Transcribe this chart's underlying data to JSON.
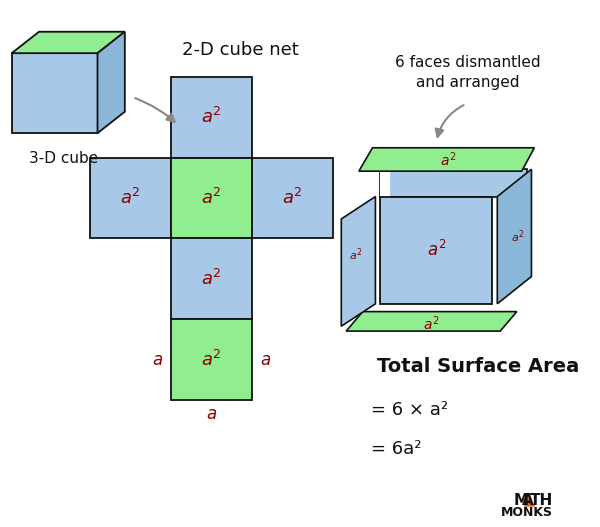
{
  "bg_color": "#ffffff",
  "blue_color": "#A8C8E8",
  "blue_mid": "#8BB8D8",
  "blue_dark": "#6A9DC0",
  "green_color": "#90EE90",
  "outline_color": "#111111",
  "label_color": "#8B0000",
  "title": "2-D cube net",
  "label_3d": "3-D cube",
  "label_6faces": "6 faces dismantled\nand arranged",
  "tsa_title": "Total Surface Area",
  "tsa_line1": "= 6 × a²",
  "tsa_line2": "= 6a²"
}
